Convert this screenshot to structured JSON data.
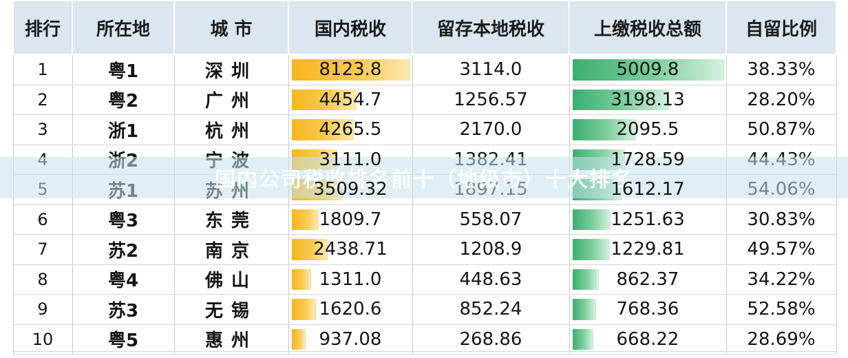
{
  "table": {
    "headers": [
      "排行",
      "所在地",
      "城 市",
      "国内税收",
      "留存本地税收",
      "上缴税收总额",
      "自留比例"
    ],
    "rows": [
      {
        "rank": "1",
        "loc": "粤1",
        "city": "深圳",
        "domestic": "8123.8",
        "retained": "3114.0",
        "remitted": "5009.8",
        "ratio": "38.33%"
      },
      {
        "rank": "2",
        "loc": "粤2",
        "city": "广州",
        "domestic": "4454.7",
        "retained": "1256.57",
        "remitted": "3198.13",
        "ratio": "28.20%"
      },
      {
        "rank": "3",
        "loc": "浙1",
        "city": "杭州",
        "domestic": "4265.5",
        "retained": "2170.0",
        "remitted": "2095.5",
        "ratio": "50.87%"
      },
      {
        "rank": "4",
        "loc": "浙2",
        "city": "宁波",
        "domestic": "3111.0",
        "retained": "1382.41",
        "remitted": "1728.59",
        "ratio": "44.43%"
      },
      {
        "rank": "5",
        "loc": "苏1",
        "city": "苏州",
        "domestic": "3509.32",
        "retained": "1897.15",
        "remitted": "1612.17",
        "ratio": "54.06%"
      },
      {
        "rank": "6",
        "loc": "粤3",
        "city": "东莞",
        "domestic": "1809.7",
        "retained": "558.07",
        "remitted": "1251.63",
        "ratio": "30.83%"
      },
      {
        "rank": "7",
        "loc": "苏2",
        "city": "南京",
        "domestic": "2438.71",
        "retained": "1208.9",
        "remitted": "1229.81",
        "ratio": "49.57%"
      },
      {
        "rank": "8",
        "loc": "粤4",
        "city": "佛山",
        "domestic": "1311.0",
        "retained": "448.63",
        "remitted": "862.37",
        "ratio": "34.22%"
      },
      {
        "rank": "9",
        "loc": "苏3",
        "city": "无锡",
        "domestic": "1620.6",
        "retained": "852.24",
        "remitted": "768.36",
        "ratio": "52.58%"
      },
      {
        "rank": "10",
        "loc": "粤5",
        "city": "惠州",
        "domestic": "937.08",
        "retained": "268.86",
        "remitted": "668.22",
        "ratio": "28.69%"
      }
    ]
  },
  "watermark": "国内公司税收排名前十（地级市）十大排名",
  "colors": {
    "header_bg": "#dbe6ef",
    "domestic_bar": "#f7b520",
    "remitted_bar": "#3dae6f",
    "watermark_band": "#c4e2ec"
  }
}
